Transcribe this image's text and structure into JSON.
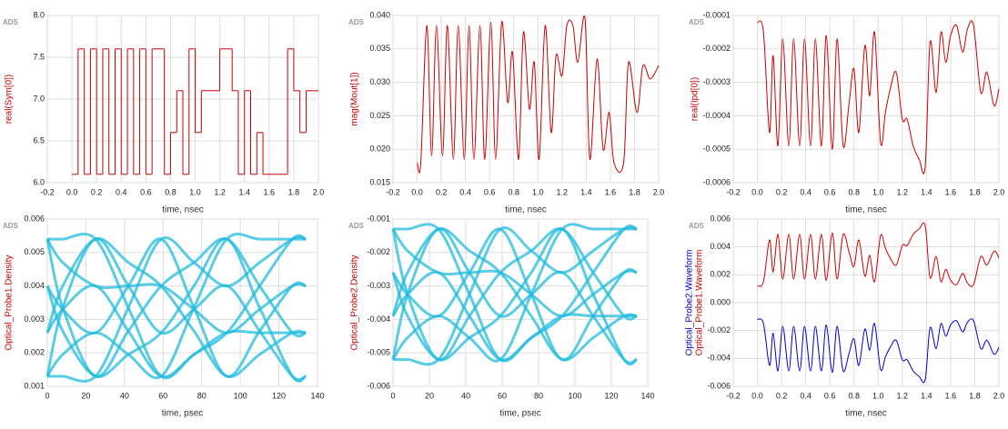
{
  "chart_data": [
    {
      "type": "step",
      "watermark": "ADS",
      "ylabel": "real(Sym[0])",
      "xlabel": "time, nsec",
      "color": "#cc0000",
      "grid": true,
      "xlim": [
        -0.2,
        2.0
      ],
      "xticks": [
        -0.2,
        {
          "value": 0,
          "label": "0.0"
        },
        0.2,
        0.4,
        0.6,
        0.8,
        {
          "value": 1,
          "label": "1.0"
        },
        1.2,
        1.4,
        1.6,
        1.8,
        {
          "value": 2,
          "label": "2.0"
        }
      ],
      "ylim": [
        6.0,
        8.0
      ],
      "yticks": [
        {
          "value": 6,
          "label": "6.0"
        },
        6.5,
        {
          "value": 7,
          "label": "7.0"
        },
        7.5,
        {
          "value": 8,
          "label": "8.0"
        }
      ],
      "x": [
        0,
        0.05,
        0.1,
        0.15,
        0.2,
        0.25,
        0.3,
        0.35,
        0.4,
        0.45,
        0.5,
        0.55,
        0.6,
        0.65,
        0.75,
        0.8,
        0.85,
        0.9,
        0.95,
        1.0,
        1.05,
        1.2,
        1.3,
        1.35,
        1.4,
        1.45,
        1.5,
        1.55,
        1.75,
        1.8,
        1.85,
        1.9
      ],
      "values": [
        6.1,
        7.6,
        6.1,
        7.6,
        6.1,
        7.6,
        6.1,
        7.6,
        6.1,
        7.6,
        6.1,
        7.6,
        6.1,
        7.6,
        6.1,
        6.6,
        7.1,
        6.1,
        7.6,
        6.6,
        7.1,
        7.6,
        7.1,
        6.1,
        7.1,
        6.1,
        6.6,
        6.1,
        7.6,
        7.1,
        6.6,
        7.1
      ]
    },
    {
      "type": "line",
      "watermark": "ADS",
      "ylabel": "mag(Mout[1])",
      "xlabel": "time, nsec",
      "color": "#cc0000",
      "grid": true,
      "xlim": [
        -0.2,
        2.0
      ],
      "xticks": [
        -0.2,
        {
          "value": 0,
          "label": "0.0"
        },
        0.2,
        0.4,
        0.6,
        0.8,
        {
          "value": 1,
          "label": "1.0"
        },
        1.2,
        1.4,
        1.6,
        1.8,
        {
          "value": 2,
          "label": "2.0"
        }
      ],
      "ylim": [
        0.015,
        0.04
      ],
      "yticks": [
        0.015,
        {
          "value": 0.02,
          "label": "0.020"
        },
        0.025,
        {
          "value": 0.03,
          "label": "0.030"
        },
        0.035,
        {
          "value": 0.04,
          "label": "0.040"
        }
      ],
      "x": [
        0,
        0.03,
        0.08,
        0.12,
        0.16,
        0.21,
        0.25,
        0.3,
        0.34,
        0.39,
        0.43,
        0.47,
        0.52,
        0.56,
        0.61,
        0.65,
        0.7,
        0.75,
        0.79,
        0.84,
        0.88,
        0.93,
        0.97,
        1.01,
        1.06,
        1.11,
        1.15,
        1.2,
        1.24,
        1.29,
        1.33,
        1.39,
        1.43,
        1.49,
        1.54,
        1.59,
        1.63,
        1.71,
        1.75,
        1.82,
        1.87,
        1.93,
        2.0
      ],
      "values": [
        0.018,
        0.018,
        0.0385,
        0.019,
        0.0385,
        0.019,
        0.0385,
        0.0185,
        0.0385,
        0.0185,
        0.0385,
        0.0185,
        0.0385,
        0.0185,
        0.039,
        0.0185,
        0.039,
        0.027,
        0.0345,
        0.0185,
        0.0375,
        0.026,
        0.033,
        0.0185,
        0.0385,
        0.0225,
        0.034,
        0.031,
        0.0385,
        0.0385,
        0.033,
        0.0395,
        0.0185,
        0.0335,
        0.02,
        0.0255,
        0.018,
        0.018,
        0.033,
        0.0255,
        0.0325,
        0.0305,
        0.0325
      ]
    },
    {
      "type": "line",
      "watermark": "ADS",
      "ylabel": "real(Ipd[0])",
      "xlabel": "time, nsec",
      "color": "#cc0000",
      "grid": true,
      "xlim": [
        -0.2,
        2.0
      ],
      "xticks": [
        -0.2,
        {
          "value": 0,
          "label": "0.0"
        },
        0.2,
        0.4,
        0.6,
        0.8,
        {
          "value": 1,
          "label": "1.0"
        },
        1.2,
        1.4,
        1.6,
        1.8,
        {
          "value": 2,
          "label": "2.0"
        }
      ],
      "ylim": [
        -0.0006,
        -0.0001
      ],
      "yticks": [
        -0.0006,
        -0.0005,
        -0.0004,
        -0.0003,
        -0.0002,
        -0.0001
      ],
      "x": [
        0,
        0.05,
        0.1,
        0.13,
        0.17,
        0.21,
        0.26,
        0.3,
        0.35,
        0.39,
        0.44,
        0.48,
        0.53,
        0.57,
        0.62,
        0.66,
        0.71,
        0.76,
        0.8,
        0.84,
        0.89,
        0.93,
        0.97,
        1.02,
        1.06,
        1.1,
        1.15,
        1.2,
        1.24,
        1.29,
        1.34,
        1.39,
        1.43,
        1.48,
        1.52,
        1.56,
        1.6,
        1.65,
        1.7,
        1.74,
        1.79,
        1.85,
        1.9,
        1.96,
        2.0
      ],
      "values": [
        -0.00012,
        -0.00015,
        -0.00045,
        -0.00022,
        -0.00049,
        -0.00017,
        -0.00049,
        -0.00017,
        -0.00049,
        -0.00017,
        -0.00049,
        -0.00017,
        -0.00049,
        -0.00016,
        -0.0005,
        -0.00017,
        -0.00049,
        -0.00036,
        -0.00026,
        -0.00045,
        -0.00019,
        -0.00034,
        -0.00015,
        -0.00048,
        -0.00039,
        -0.00032,
        -0.00027,
        -0.00041,
        -0.00041,
        -0.00049,
        -0.00053,
        -0.00055,
        -0.00018,
        -0.00033,
        -0.00015,
        -0.00024,
        -0.00016,
        -0.00013,
        -0.00021,
        -0.00014,
        -0.00013,
        -0.00033,
        -0.00027,
        -0.00037,
        -0.00032
      ]
    },
    {
      "type": "eye",
      "watermark": "ADS",
      "ylabel": "Optical_Probe1.Density",
      "xlabel": "time, psec",
      "color": "#22bbdd",
      "grid": true,
      "xlim": [
        0,
        140
      ],
      "xticks": [
        0,
        20,
        40,
        60,
        80,
        100,
        120,
        140
      ],
      "ylim": [
        0.001,
        0.006
      ],
      "yticks": [
        0.001,
        0.002,
        0.003,
        0.004,
        0.005,
        0.006
      ],
      "x": [
        0,
        8,
        25,
        42,
        59,
        76,
        93,
        110,
        127,
        134
      ],
      "series": [
        {
          "values": [
            0.0013,
            0.00335,
            0.0054,
            0.004,
            0.0026,
            0.0033,
            0.004,
            0.00265,
            0.0013,
            0.0013
          ]
        },
        {
          "values": [
            0.0054,
            0.00335,
            0.0013,
            0.00265,
            0.004,
            0.0047,
            0.0054,
            0.004,
            0.0026,
            0.0026
          ]
        },
        {
          "values": [
            0.0026,
            0.0033,
            0.004,
            0.00265,
            0.0013,
            0.00195,
            0.0026,
            0.004,
            0.0054,
            0.0054
          ]
        },
        {
          "values": [
            0.004,
            0.0033,
            0.0026,
            0.004,
            0.0054,
            0.00335,
            0.0013,
            0.00265,
            0.004,
            0.004
          ]
        },
        {
          "values": [
            0.0054,
            0.0054,
            0.0054,
            0.00335,
            0.0013,
            0.00195,
            0.0026,
            0.0026,
            0.0026,
            0.0026
          ]
        },
        {
          "values": [
            0.0013,
            0.0013,
            0.0013,
            0.00335,
            0.0054,
            0.0047,
            0.004,
            0.0047,
            0.0054,
            0.0054
          ]
        },
        {
          "values": [
            0.004,
            0.00265,
            0.0013,
            0.00195,
            0.0026,
            0.004,
            0.0054,
            0.00335,
            0.0013,
            0.0013
          ]
        },
        {
          "values": [
            0.0026,
            0.004,
            0.0054,
            0.0047,
            0.004,
            0.00265,
            0.0013,
            0.00195,
            0.0026,
            0.0026
          ]
        },
        {
          "values": [
            0.0054,
            0.0047,
            0.004,
            0.004,
            0.004,
            0.0033,
            0.0026,
            0.0033,
            0.004,
            0.004
          ]
        },
        {
          "values": [
            0.0013,
            0.00195,
            0.0026,
            0.00195,
            0.0013,
            0.00335,
            0.0054,
            0.0054,
            0.0054,
            0.0054
          ]
        }
      ]
    },
    {
      "type": "eye",
      "watermark": "ADS",
      "ylabel": "Optical_Probe2.Density",
      "xlabel": "time, psec",
      "color": "#22bbdd",
      "grid": true,
      "xlim": [
        0,
        140
      ],
      "xticks": [
        0,
        20,
        40,
        60,
        80,
        100,
        120,
        140
      ],
      "ylim": [
        -0.006,
        -0.001
      ],
      "yticks": [
        -0.006,
        -0.005,
        -0.004,
        -0.003,
        -0.002,
        -0.001
      ],
      "x": [
        0,
        8,
        25,
        42,
        59,
        76,
        93,
        110,
        127,
        134
      ],
      "series": [
        {
          "values": [
            -0.0052,
            -0.00325,
            -0.0013,
            -0.0026,
            -0.0039,
            -0.00325,
            -0.0026,
            -0.0039,
            -0.0052,
            -0.0052
          ]
        },
        {
          "values": [
            -0.0013,
            -0.00325,
            -0.0052,
            -0.0039,
            -0.0026,
            -0.00195,
            -0.0013,
            -0.0026,
            -0.0039,
            -0.0039
          ]
        },
        {
          "values": [
            -0.0039,
            -0.00325,
            -0.0026,
            -0.0039,
            -0.0052,
            -0.00455,
            -0.0039,
            -0.0026,
            -0.0013,
            -0.0013
          ]
        },
        {
          "values": [
            -0.0026,
            -0.00325,
            -0.0039,
            -0.0026,
            -0.0013,
            -0.00325,
            -0.0052,
            -0.0039,
            -0.0026,
            -0.0026
          ]
        },
        {
          "values": [
            -0.0013,
            -0.0013,
            -0.0013,
            -0.00325,
            -0.0052,
            -0.00455,
            -0.0039,
            -0.0039,
            -0.0039,
            -0.0039
          ]
        },
        {
          "values": [
            -0.0052,
            -0.0052,
            -0.0052,
            -0.00325,
            -0.0013,
            -0.00195,
            -0.0026,
            -0.00195,
            -0.0013,
            -0.0013
          ]
        },
        {
          "values": [
            -0.0026,
            -0.0039,
            -0.0052,
            -0.00455,
            -0.0039,
            -0.0026,
            -0.0013,
            -0.00325,
            -0.0052,
            -0.0052
          ]
        },
        {
          "values": [
            -0.0039,
            -0.0026,
            -0.0013,
            -0.00195,
            -0.0026,
            -0.0039,
            -0.0052,
            -0.00455,
            -0.0039,
            -0.0039
          ]
        },
        {
          "values": [
            -0.0013,
            -0.00195,
            -0.0026,
            -0.0026,
            -0.0026,
            -0.00325,
            -0.0039,
            -0.00325,
            -0.0026,
            -0.0026
          ]
        },
        {
          "values": [
            -0.0052,
            -0.00455,
            -0.0039,
            -0.00455,
            -0.0052,
            -0.00325,
            -0.0013,
            -0.0013,
            -0.0013,
            -0.0013
          ]
        }
      ]
    },
    {
      "type": "line",
      "watermark": "ADS",
      "xlabel": "time, nsec",
      "grid": true,
      "xlim": [
        -0.2,
        2.0
      ],
      "xticks": [
        -0.2,
        {
          "value": 0,
          "label": "0.0"
        },
        0.2,
        0.4,
        0.6,
        0.8,
        {
          "value": 1,
          "label": "1.0"
        },
        1.2,
        1.4,
        1.6,
        1.8,
        {
          "value": 2,
          "label": "2.0"
        }
      ],
      "ylim": [
        -0.006,
        0.006
      ],
      "yticks": [
        -0.006,
        -0.004,
        -0.002,
        {
          "value": 0,
          "label": "0.000"
        },
        0.002,
        0.004,
        0.006
      ],
      "x": [
        0,
        0.05,
        0.1,
        0.13,
        0.17,
        0.21,
        0.26,
        0.3,
        0.35,
        0.39,
        0.44,
        0.48,
        0.53,
        0.57,
        0.62,
        0.66,
        0.71,
        0.76,
        0.8,
        0.84,
        0.89,
        0.93,
        0.97,
        1.02,
        1.06,
        1.1,
        1.15,
        1.2,
        1.24,
        1.29,
        1.34,
        1.39,
        1.43,
        1.48,
        1.52,
        1.56,
        1.6,
        1.65,
        1.7,
        1.74,
        1.79,
        1.85,
        1.9,
        1.96,
        2.0
      ],
      "series": [
        {
          "name": "Optical_Probe1.Waveform",
          "color": "#cc0000",
          "values": [
            0.0012,
            0.0015,
            0.0045,
            0.0022,
            0.0049,
            0.0017,
            0.0049,
            0.0017,
            0.0049,
            0.0017,
            0.0049,
            0.0017,
            0.0049,
            0.0016,
            0.005,
            0.0017,
            0.0049,
            0.0036,
            0.0026,
            0.0045,
            0.0019,
            0.0034,
            0.0015,
            0.0048,
            0.0039,
            0.0032,
            0.0027,
            0.0041,
            0.0041,
            0.0049,
            0.0053,
            0.0055,
            0.0018,
            0.0033,
            0.0015,
            0.0024,
            0.0016,
            0.0013,
            0.0021,
            0.0014,
            0.0013,
            0.0033,
            0.0027,
            0.0037,
            0.0032
          ]
        },
        {
          "name": "Optical_Probe2.Waveform",
          "color": "#0000cc",
          "values": [
            -0.0012,
            -0.0015,
            -0.0045,
            -0.0022,
            -0.0049,
            -0.0017,
            -0.0049,
            -0.0017,
            -0.0049,
            -0.0017,
            -0.0049,
            -0.0017,
            -0.0049,
            -0.0016,
            -0.005,
            -0.0017,
            -0.0049,
            -0.0036,
            -0.0026,
            -0.0045,
            -0.0019,
            -0.0034,
            -0.0015,
            -0.0048,
            -0.0039,
            -0.0032,
            -0.0027,
            -0.0041,
            -0.0041,
            -0.0049,
            -0.0053,
            -0.0055,
            -0.0018,
            -0.0033,
            -0.0015,
            -0.0024,
            -0.0016,
            -0.0013,
            -0.0021,
            -0.0014,
            -0.0013,
            -0.0033,
            -0.0027,
            -0.0037,
            -0.0032
          ]
        }
      ]
    }
  ]
}
